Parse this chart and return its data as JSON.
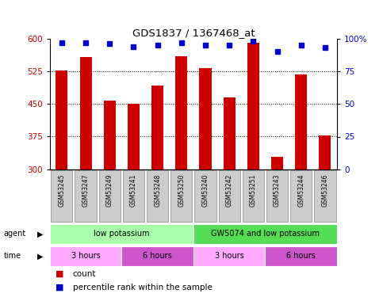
{
  "title": "GDS1837 / 1367468_at",
  "samples": [
    "GSM53245",
    "GSM53247",
    "GSM53249",
    "GSM53241",
    "GSM53248",
    "GSM53250",
    "GSM53240",
    "GSM53242",
    "GSM53251",
    "GSM53243",
    "GSM53244",
    "GSM53246"
  ],
  "bar_values": [
    527,
    557,
    457,
    450,
    492,
    560,
    533,
    465,
    590,
    328,
    518,
    378
  ],
  "percentile_values": [
    97,
    97,
    96,
    94,
    95,
    97,
    95,
    95,
    98,
    90,
    95,
    93
  ],
  "ylim_left": [
    300,
    600
  ],
  "ylim_right": [
    0,
    100
  ],
  "yticks_left": [
    300,
    375,
    450,
    525,
    600
  ],
  "yticks_right": [
    0,
    25,
    50,
    75,
    100
  ],
  "bar_color": "#cc0000",
  "percentile_color": "#0000cc",
  "background_color": "#ffffff",
  "agent_groups": [
    {
      "label": "low potassium",
      "start": 0,
      "end": 6,
      "color": "#aaffaa"
    },
    {
      "label": "GW5074 and low potassium",
      "start": 6,
      "end": 12,
      "color": "#55dd55"
    }
  ],
  "time_groups": [
    {
      "label": "3 hours",
      "start": 0,
      "end": 3,
      "color": "#ffaaff"
    },
    {
      "label": "6 hours",
      "start": 3,
      "end": 6,
      "color": "#cc55cc"
    },
    {
      "label": "3 hours",
      "start": 6,
      "end": 9,
      "color": "#ffaaff"
    },
    {
      "label": "6 hours",
      "start": 9,
      "end": 12,
      "color": "#cc55cc"
    }
  ],
  "legend_items": [
    {
      "label": "count",
      "color": "#cc0000"
    },
    {
      "label": "percentile rank within the sample",
      "color": "#0000cc"
    }
  ],
  "sample_box_color": "#cccccc",
  "sample_box_edge": "#888888"
}
